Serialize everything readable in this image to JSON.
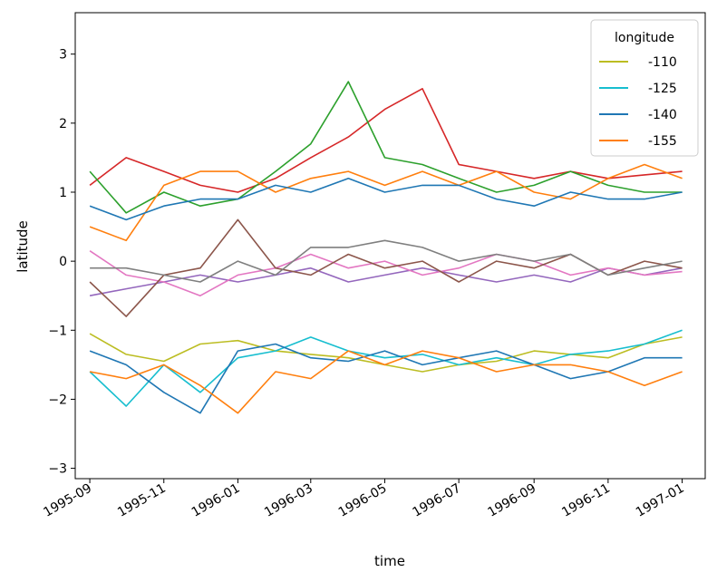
{
  "chart_data": {
    "type": "line",
    "xlabel": "time",
    "ylabel": "latitude",
    "xlim": [
      "1995-08-20",
      "1997-01-20"
    ],
    "ylim": [
      -3.15,
      3.6
    ],
    "x_ticks": [
      "1995-09",
      "1995-11",
      "1996-01",
      "1996-03",
      "1996-05",
      "1996-07",
      "1996-09",
      "1996-11",
      "1997-01"
    ],
    "y_ticks": [
      -3,
      -2,
      -1,
      0,
      1,
      2,
      3
    ],
    "legend": {
      "title": "longitude",
      "placement": "top-right",
      "entries": [
        {
          "label": "-110",
          "color": "#bcbd22"
        },
        {
          "label": "-125",
          "color": "#17becf"
        },
        {
          "label": "-140",
          "color": "#1f77b4"
        },
        {
          "label": "-155",
          "color": "#ff7f0e"
        }
      ]
    },
    "x_dates": [
      "1995-09-01",
      "1995-10-01",
      "1995-11-01",
      "1995-12-01",
      "1996-01-01",
      "1996-02-01",
      "1996-03-01",
      "1996-04-01",
      "1996-05-01",
      "1996-06-01",
      "1996-07-01",
      "1996-08-01",
      "1996-09-01",
      "1996-10-01",
      "1996-11-01",
      "1996-12-01",
      "1997-01-01"
    ],
    "series": [
      {
        "color": "#bcbd22",
        "values": [
          -1.05,
          -1.35,
          -1.45,
          -1.2,
          -1.15,
          -1.3,
          -1.35,
          -1.4,
          -1.5,
          -1.6,
          -1.5,
          -1.45,
          -1.3,
          -1.35,
          -1.4,
          -1.2,
          -1.1
        ]
      },
      {
        "color": "#17becf",
        "values": [
          -1.6,
          -2.1,
          -1.5,
          -1.9,
          -1.4,
          -1.3,
          -1.1,
          -1.3,
          -1.4,
          -1.35,
          -1.5,
          -1.4,
          -1.5,
          -1.35,
          -1.3,
          -1.2,
          -1.0
        ]
      },
      {
        "color": "#1f77b4",
        "values": [
          -1.3,
          -1.5,
          -1.9,
          -2.2,
          -1.3,
          -1.2,
          -1.4,
          -1.45,
          -1.3,
          -1.5,
          -1.4,
          -1.3,
          -1.5,
          -1.7,
          -1.6,
          -1.4,
          -1.4
        ]
      },
      {
        "color": "#ff7f0e",
        "values": [
          -1.6,
          -1.7,
          -1.5,
          -1.8,
          -2.2,
          -1.6,
          -1.7,
          -1.3,
          -1.5,
          -1.3,
          -1.4,
          -1.6,
          -1.5,
          -1.5,
          -1.6,
          -1.8,
          -1.6
        ]
      },
      {
        "color": "#d62728",
        "values": [
          1.1,
          1.5,
          1.3,
          1.1,
          1.0,
          1.2,
          1.5,
          1.8,
          2.2,
          2.5,
          1.4,
          1.3,
          1.2,
          1.3,
          1.2,
          1.25,
          1.3
        ]
      },
      {
        "color": "#2ca02c",
        "values": [
          1.3,
          0.7,
          1.0,
          0.8,
          0.9,
          1.3,
          1.7,
          2.6,
          1.5,
          1.4,
          1.2,
          1.0,
          1.1,
          1.3,
          1.1,
          1.0,
          1.0
        ]
      },
      {
        "color": "#ff7f0e",
        "values": [
          0.5,
          0.3,
          1.1,
          1.3,
          1.3,
          1.0,
          1.2,
          1.3,
          1.1,
          1.3,
          1.1,
          1.3,
          1.0,
          0.9,
          1.2,
          1.4,
          1.2
        ]
      },
      {
        "color": "#1f77b4",
        "values": [
          0.8,
          0.6,
          0.8,
          0.9,
          0.9,
          1.1,
          1.0,
          1.2,
          1.0,
          1.1,
          1.1,
          0.9,
          0.8,
          1.0,
          0.9,
          0.9,
          1.0
        ]
      },
      {
        "color": "#9467bd",
        "values": [
          -0.5,
          -0.4,
          -0.3,
          -0.2,
          -0.3,
          -0.2,
          -0.1,
          -0.3,
          -0.2,
          -0.1,
          -0.2,
          -0.3,
          -0.2,
          -0.3,
          -0.1,
          -0.2,
          -0.1
        ]
      },
      {
        "color": "#e377c2",
        "values": [
          0.15,
          -0.2,
          -0.3,
          -0.5,
          -0.2,
          -0.1,
          0.1,
          -0.1,
          0.0,
          -0.2,
          -0.1,
          0.1,
          0.0,
          -0.2,
          -0.1,
          -0.2,
          -0.15
        ]
      },
      {
        "color": "#8c564b",
        "values": [
          -0.3,
          -0.8,
          -0.2,
          -0.1,
          0.6,
          -0.1,
          -0.2,
          0.1,
          -0.1,
          0.0,
          -0.3,
          0.0,
          -0.1,
          0.1,
          -0.2,
          0.0,
          -0.1
        ]
      },
      {
        "color": "#7f7f7f",
        "values": [
          -0.1,
          -0.1,
          -0.2,
          -0.3,
          0.0,
          -0.2,
          0.2,
          0.2,
          0.3,
          0.2,
          0.0,
          0.1,
          0.0,
          0.1,
          -0.2,
          -0.1,
          0.0
        ]
      }
    ]
  }
}
